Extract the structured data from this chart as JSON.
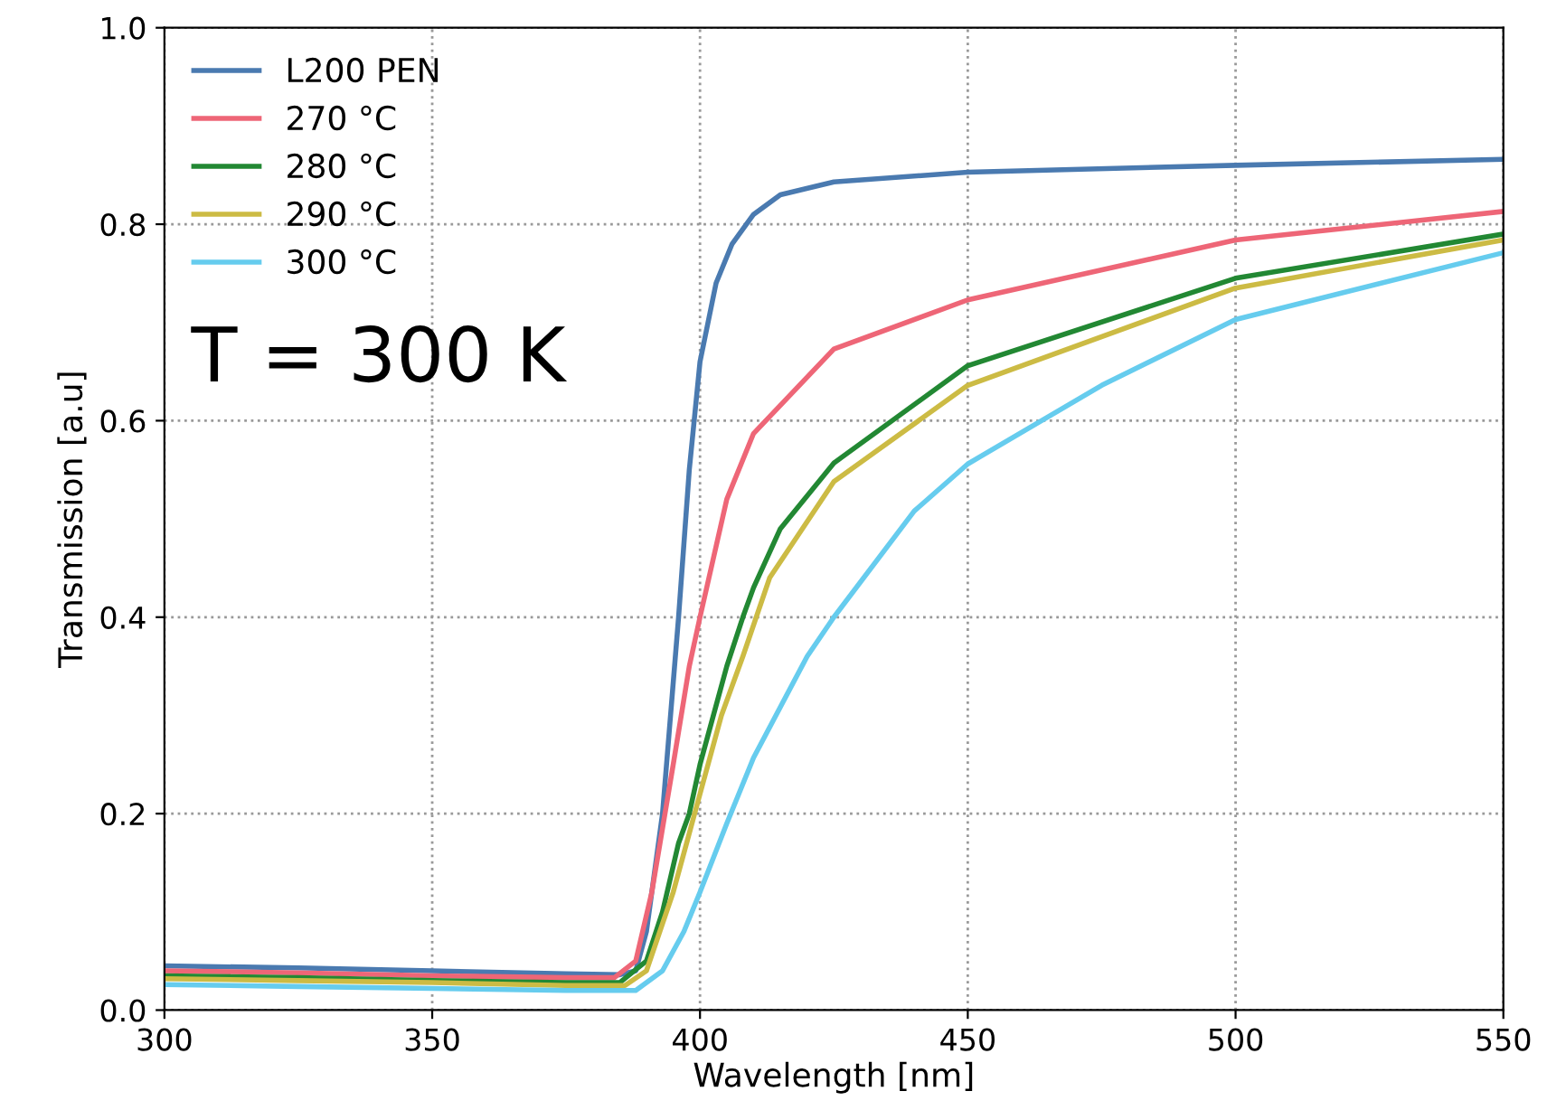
{
  "chart_data": {
    "type": "line",
    "xlabel": "Wavelength [nm]",
    "ylabel": "Transmission [a.u]",
    "annotations": [
      "T = 300 K"
    ],
    "xlim": [
      300,
      550
    ],
    "ylim": [
      0,
      1.0
    ],
    "xticks": [
      300,
      350,
      400,
      450,
      500,
      550
    ],
    "yticks": [
      {
        "value": 0,
        "label": "0.0"
      },
      0.2,
      0.4,
      0.6,
      0.8,
      {
        "value": 1,
        "label": "1.0"
      }
    ],
    "grid": true,
    "legend": "top left",
    "line_style": "solid",
    "marker": "none",
    "series": [
      {
        "name": "L200 PEN",
        "color": "#4a7ab0",
        "x": [
          300,
          325,
          350,
          375,
          385,
          388,
          390,
          393,
          396,
          398,
          400,
          403,
          406,
          410,
          415,
          425,
          450,
          500,
          550
        ],
        "values": [
          0.045,
          0.043,
          0.04,
          0.037,
          0.036,
          0.04,
          0.08,
          0.2,
          0.4,
          0.55,
          0.66,
          0.74,
          0.78,
          0.81,
          0.83,
          0.843,
          0.853,
          0.86,
          0.866
        ]
      },
      {
        "name": "270 °C",
        "color": "#ee6677",
        "x": [
          300,
          325,
          350,
          375,
          384,
          388,
          391,
          395,
          398,
          400,
          405,
          410,
          425,
          450,
          500,
          550
        ],
        "values": [
          0.04,
          0.038,
          0.035,
          0.033,
          0.033,
          0.05,
          0.12,
          0.25,
          0.35,
          0.4,
          0.52,
          0.587,
          0.673,
          0.723,
          0.784,
          0.813
        ]
      },
      {
        "name": "280 °C",
        "color": "#228833",
        "x": [
          300,
          325,
          350,
          375,
          385,
          390,
          393,
          396,
          398,
          400,
          405,
          408,
          410,
          415,
          425,
          450,
          500,
          550
        ],
        "values": [
          0.035,
          0.033,
          0.03,
          0.028,
          0.028,
          0.05,
          0.1,
          0.17,
          0.2,
          0.25,
          0.35,
          0.4,
          0.43,
          0.49,
          0.557,
          0.656,
          0.745,
          0.79
        ]
      },
      {
        "name": "290 °C",
        "color": "#ccbb44",
        "x": [
          300,
          325,
          350,
          375,
          386,
          390,
          395,
          400,
          404,
          408,
          413,
          425,
          450,
          500,
          550
        ],
        "values": [
          0.032,
          0.03,
          0.028,
          0.025,
          0.025,
          0.04,
          0.12,
          0.22,
          0.3,
          0.36,
          0.44,
          0.538,
          0.636,
          0.735,
          0.784
        ]
      },
      {
        "name": "300 °C",
        "color": "#66ccee",
        "x": [
          300,
          325,
          350,
          375,
          388,
          393,
          397,
          400,
          405,
          410,
          420,
          425,
          440,
          450,
          475,
          500,
          550
        ],
        "values": [
          0.026,
          0.024,
          0.022,
          0.02,
          0.02,
          0.04,
          0.08,
          0.12,
          0.19,
          0.257,
          0.36,
          0.4,
          0.508,
          0.556,
          0.636,
          0.703,
          0.771
        ]
      }
    ]
  }
}
